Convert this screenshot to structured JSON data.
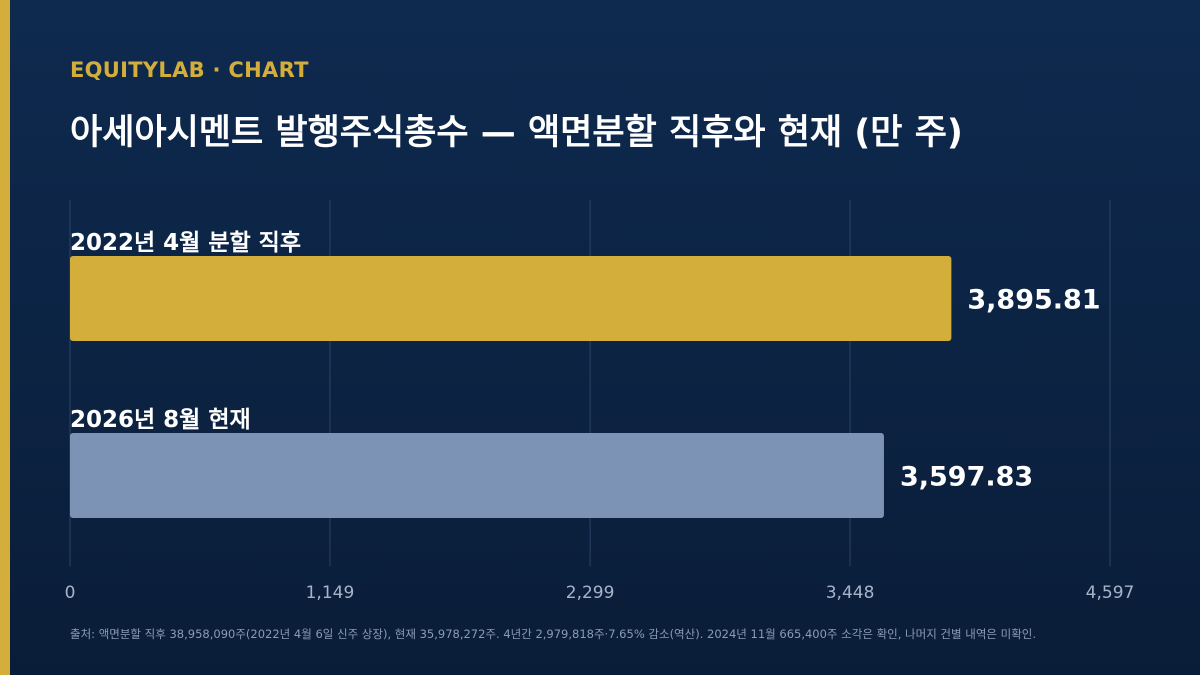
{
  "brand": "EQUITYLAB · CHART",
  "colors": {
    "accent": "#d4ae3a",
    "bar_split": "#d4ae3a",
    "bar_current": "#7d93b5",
    "background": "#0e2a4f"
  },
  "chart_data": {
    "type": "bar",
    "orientation": "horizontal",
    "title": "아세아시멘트 발행주식총수 — 액면분할 직후와 현재 (만 주)",
    "categories": [
      "2022년 4월 분할 직후",
      "2026년 8월 현재"
    ],
    "values": [
      3895.81,
      3597.83
    ],
    "value_labels": [
      "3,895.81",
      "3,597.83"
    ],
    "xlim": [
      0,
      4597
    ],
    "xticks": [
      0,
      1149,
      2299,
      3448,
      4597
    ],
    "xtick_labels": [
      "0",
      "1,149",
      "2,299",
      "3,448",
      "4,597"
    ],
    "grid": true
  },
  "source": "출처: 액면분할 직후 38,958,090주(2022년 4월 6일 신주 상장), 현재 35,978,272주. 4년간 2,979,818주·7.65% 감소(역산). 2024년 11월 665,400주 소각은 확인, 나머지 건별 내역은 미확인."
}
